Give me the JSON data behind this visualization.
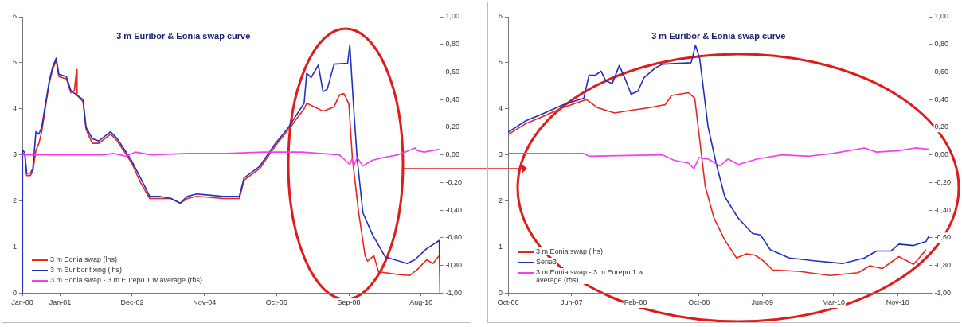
{
  "chart_data": [
    {
      "type": "line",
      "title": "3 m Euribor & Eonia swap curve",
      "legend": "bottom left",
      "xlim": [
        "2000-01-01",
        "2011-02-01"
      ],
      "xticks": [
        {
          "value": "2000-01-01",
          "label": "Jan-00"
        },
        {
          "value": "2001-01-01",
          "label": "Jan-01"
        },
        {
          "value": "2002-12-01",
          "label": "Dec-02"
        },
        {
          "value": "2004-11-01",
          "label": "Nov-04"
        },
        {
          "value": "2006-10-01",
          "label": "Oct-06"
        },
        {
          "value": "2008-09-01",
          "label": "Sep-08"
        },
        {
          "value": "2010-08-01",
          "label": "Aug-10"
        }
      ],
      "ylim": [
        0,
        6
      ],
      "yticks": [
        0,
        1,
        2,
        3,
        4,
        5,
        6
      ],
      "y2lim": [
        -1,
        1
      ],
      "y2ticks": [
        {
          "value": -1,
          "label": "-1,00"
        },
        {
          "value": -0.8,
          "label": "-0,80"
        },
        {
          "value": -0.6,
          "label": "-0,60"
        },
        {
          "value": -0.4,
          "label": "-0,40"
        },
        {
          "value": -0.2,
          "label": "-0,20"
        },
        {
          "value": 0,
          "label": "0,00"
        },
        {
          "value": 0.2,
          "label": "0,20"
        },
        {
          "value": 0.4,
          "label": "0,40"
        },
        {
          "value": 0.6,
          "label": "0,60"
        },
        {
          "value": 0.8,
          "label": "0,80"
        },
        {
          "value": 1,
          "label": "1,00"
        }
      ],
      "series": [
        {
          "name": "3 m Eonia swap (lhs)",
          "color": "#e8251f",
          "x": [
            "2000-01-03",
            "2000-01-25",
            "2000-02-12",
            "2000-03-20",
            "2000-04-12",
            "2000-05-12",
            "2000-06-10",
            "2000-07-07",
            "2000-08-20",
            "2000-09-18",
            "2000-10-20",
            "2000-11-25",
            "2000-12-20",
            "2001-03-03",
            "2001-04-15",
            "2001-05-20",
            "2001-06-10",
            "2001-06-15",
            "2001-08-12",
            "2001-09-10",
            "2001-11-10",
            "2002-01-12",
            "2002-05-06",
            "2002-07-10",
            "2002-10-06",
            "2002-12-01",
            "2003-02-20",
            "2003-05-20",
            "2003-08-25",
            "2003-12-12",
            "2004-03-10",
            "2004-05-20",
            "2004-08-18",
            "2005-04-28",
            "2005-10-05",
            "2005-11-20",
            "2006-04-20",
            "2006-09-20",
            "2007-01-25",
            "2007-06-25",
            "2007-07-20",
            "2007-12-25",
            "2008-04-10",
            "2008-06-01",
            "2008-07-15",
            "2008-09-01",
            "2008-10-05",
            "2008-12-05",
            "2009-02-05",
            "2009-03-01",
            "2009-05-01",
            "2009-06-15",
            "2009-12-20",
            "2010-04-15",
            "2010-07-01",
            "2010-09-25",
            "2010-11-25",
            "2011-01-25"
          ],
          "values": [
            3.05,
            3.0,
            2.55,
            2.55,
            2.65,
            3.1,
            3.25,
            3.5,
            4.15,
            4.55,
            4.85,
            5.05,
            4.7,
            4.65,
            4.35,
            4.4,
            4.85,
            4.3,
            4.15,
            3.55,
            3.25,
            3.25,
            3.45,
            3.3,
            3.0,
            2.8,
            2.4,
            2.05,
            2.05,
            2.05,
            1.95,
            2.05,
            2.1,
            2.05,
            2.05,
            2.45,
            2.7,
            3.2,
            3.55,
            4.0,
            4.12,
            3.95,
            4.04,
            4.3,
            4.33,
            4.1,
            2.92,
            1.74,
            0.81,
            0.69,
            0.81,
            0.46,
            0.4,
            0.38,
            0.52,
            0.72,
            0.64,
            0.81
          ]
        },
        {
          "name": "3 m Euribor fixing (lhs)",
          "color": "#1f2fbf",
          "x": [
            "2000-01-01",
            "2000-01-03",
            "2000-01-25",
            "2000-02-12",
            "2000-03-20",
            "2000-04-12",
            "2000-05-12",
            "2000-06-10",
            "2000-07-07",
            "2000-08-20",
            "2000-09-18",
            "2000-10-20",
            "2000-11-25",
            "2000-12-20",
            "2001-03-03",
            "2001-04-15",
            "2001-06-10",
            "2001-08-12",
            "2001-09-10",
            "2001-11-10",
            "2002-01-12",
            "2002-05-06",
            "2002-07-10",
            "2002-10-06",
            "2002-12-01",
            "2003-02-20",
            "2003-05-20",
            "2003-08-25",
            "2003-12-12",
            "2004-03-10",
            "2004-05-20",
            "2004-08-18",
            "2005-04-28",
            "2005-10-05",
            "2005-11-20",
            "2006-04-20",
            "2006-09-20",
            "2007-01-25",
            "2007-06-25",
            "2007-07-20",
            "2007-09-01",
            "2007-11-10",
            "2007-12-25",
            "2008-02-05",
            "2008-04-10",
            "2008-08-20",
            "2008-09-10",
            "2008-10-15",
            "2008-11-20",
            "2009-01-15",
            "2009-04-15",
            "2009-08-20",
            "2010-03-20",
            "2010-06-01",
            "2010-09-25",
            "2011-01-25",
            "2011-02-01"
          ],
          "values": [
            0,
            3.1,
            3.05,
            2.6,
            2.6,
            2.7,
            3.5,
            3.45,
            3.6,
            4.2,
            4.6,
            4.9,
            5.1,
            4.75,
            4.7,
            4.4,
            4.3,
            4.2,
            3.6,
            3.35,
            3.3,
            3.5,
            3.35,
            3.05,
            2.85,
            2.5,
            2.1,
            2.1,
            2.05,
            1.95,
            2.1,
            2.15,
            2.1,
            2.1,
            2.5,
            2.75,
            3.25,
            3.6,
            4.12,
            4.77,
            4.68,
            4.95,
            4.37,
            4.43,
            4.97,
            4.99,
            5.39,
            4.1,
            2.92,
            1.74,
            1.28,
            0.78,
            0.64,
            0.72,
            0.96,
            1.14,
            0
          ]
        },
        {
          "name": "3 m Eonia swap - 3 m Eurepo  1 w average (rhs)",
          "color": "#f23ef2",
          "axis": "y2",
          "x": [
            "2000-01-01",
            "2002-03-01",
            "2002-06-01",
            "2002-10-01",
            "2003-01-01",
            "2003-06-01",
            "2004-06-01",
            "2005-06-01",
            "2006-06-01",
            "2007-06-01",
            "2008-06-01",
            "2008-09-10",
            "2008-10-01",
            "2008-10-20",
            "2008-11-20",
            "2009-01-15",
            "2009-04-15",
            "2009-08-01",
            "2009-12-20",
            "2010-04-01",
            "2010-06-01",
            "2010-07-01",
            "2010-09-01",
            "2011-01-25"
          ],
          "values": [
            0,
            0,
            0.01,
            -0.01,
            0.02,
            0.0,
            0.01,
            0.01,
            0.02,
            0.02,
            0.0,
            -0.07,
            -0.03,
            -0.08,
            -0.02,
            -0.08,
            -0.04,
            -0.02,
            0.0,
            0.03,
            0.05,
            0.03,
            0.02,
            0.04
          ]
        }
      ]
    },
    {
      "type": "line",
      "title": "3 m Euribor & Eonia swap curve",
      "legend": "bottom left",
      "xlim": [
        "2006-10-01",
        "2011-03-01"
      ],
      "xticks": [
        {
          "value": "2006-10-01",
          "label": "Oct-06"
        },
        {
          "value": "2007-06-01",
          "label": "Jun-07"
        },
        {
          "value": "2008-02-01",
          "label": "Feb-08"
        },
        {
          "value": "2008-10-01",
          "label": "Oct-08"
        },
        {
          "value": "2009-06-01",
          "label": "Jun-09"
        },
        {
          "value": "2010-03-01",
          "label": "Mar-10"
        },
        {
          "value": "2010-11-01",
          "label": "Nov-10"
        }
      ],
      "ylim": [
        0,
        6
      ],
      "yticks": [
        0,
        1,
        2,
        3,
        4,
        5,
        6
      ],
      "y2lim": [
        -1,
        1
      ],
      "y2ticks": [
        {
          "value": -1,
          "label": "-1,00"
        },
        {
          "value": -0.8,
          "label": "-0,80"
        },
        {
          "value": -0.6,
          "label": "-0,60"
        },
        {
          "value": -0.4,
          "label": "-0,40"
        },
        {
          "value": -0.2,
          "label": "-0,20"
        },
        {
          "value": 0,
          "label": "0,00"
        },
        {
          "value": 0.2,
          "label": "0,20"
        },
        {
          "value": 0.4,
          "label": "0,40"
        },
        {
          "value": 0.6,
          "label": "0,60"
        },
        {
          "value": 0.8,
          "label": "0,80"
        },
        {
          "value": 1,
          "label": "1,00"
        }
      ],
      "series": [
        {
          "name": "3 m Eonia swap (lhs)",
          "color": "#e8251f",
          "x": [
            "2006-10-01",
            "2006-12-05",
            "2007-02-18",
            "2007-05-01",
            "2007-07-18",
            "2007-07-28",
            "2007-09-10",
            "2007-11-13",
            "2008-01-18",
            "2008-03-22",
            "2008-05-25",
            "2008-06-18",
            "2008-08-22",
            "2008-09-15",
            "2008-09-28",
            "2008-10-25",
            "2008-11-28",
            "2009-01-08",
            "2009-02-22",
            "2009-04-01",
            "2009-05-04",
            "2009-06-04",
            "2009-07-10",
            "2009-10-18",
            "2010-02-15",
            "2010-06-03",
            "2010-07-18",
            "2010-09-03",
            "2010-11-06",
            "2011-01-01",
            "2011-01-27",
            "2011-02-18"
          ],
          "values": [
            3.44,
            3.67,
            3.85,
            4.03,
            4.18,
            4.2,
            4.02,
            3.91,
            3.97,
            4.02,
            4.09,
            4.29,
            4.35,
            4.23,
            3.61,
            2.32,
            1.62,
            1.15,
            0.76,
            0.85,
            0.82,
            0.7,
            0.5,
            0.47,
            0.38,
            0.44,
            0.59,
            0.53,
            0.79,
            0.62,
            0.79,
            0.94
          ]
        },
        {
          "name": "Série3",
          "color": "#1f2fbf",
          "x": [
            "2006-10-01",
            "2006-12-05",
            "2007-02-18",
            "2007-05-01",
            "2007-07-18",
            "2007-08-07",
            "2007-09-01",
            "2007-09-22",
            "2007-10-10",
            "2007-11-04",
            "2007-12-01",
            "2007-12-22",
            "2008-01-15",
            "2008-02-10",
            "2008-03-04",
            "2008-04-15",
            "2008-05-15",
            "2008-09-01",
            "2008-09-18",
            "2008-10-04",
            "2008-11-05",
            "2008-12-07",
            "2009-01-08",
            "2009-03-01",
            "2009-04-25",
            "2009-05-25",
            "2009-07-01",
            "2009-09-12",
            "2009-12-15",
            "2010-04-04",
            "2010-06-27",
            "2010-08-12",
            "2010-10-06",
            "2010-11-06",
            "2011-01-01",
            "2011-02-18",
            "2011-03-01"
          ],
          "values": [
            3.49,
            3.73,
            3.91,
            4.09,
            4.23,
            4.73,
            4.73,
            4.82,
            4.61,
            4.55,
            4.94,
            4.67,
            4.32,
            4.38,
            4.67,
            4.88,
            4.97,
            5.0,
            5.38,
            5.09,
            3.61,
            2.79,
            2.09,
            1.62,
            1.29,
            1.26,
            0.94,
            0.76,
            0.7,
            0.64,
            0.76,
            0.91,
            0.91,
            1.06,
            1.03,
            1.12,
            1.24
          ]
        },
        {
          "name": "3 m Eonia swap - 3 m Eurepo  1 w average (rhs)",
          "color": "#f23ef2",
          "axis": "y2",
          "x": [
            "2006-10-01",
            "2007-07-18",
            "2007-08-07",
            "2008-05-15",
            "2008-06-28",
            "2008-08-22",
            "2008-09-12",
            "2008-10-01",
            "2008-10-25",
            "2008-11-05",
            "2008-12-20",
            "2009-01-20",
            "2009-03-01",
            "2009-05-13",
            "2009-08-15",
            "2009-11-25",
            "2010-02-25",
            "2010-06-27",
            "2010-08-12",
            "2010-11-06",
            "2011-01-08",
            "2011-03-01"
          ],
          "values": [
            0.01,
            0.01,
            -0.01,
            0.0,
            -0.04,
            -0.06,
            -0.1,
            -0.02,
            -0.03,
            -0.03,
            -0.08,
            -0.03,
            -0.07,
            -0.03,
            0.0,
            -0.01,
            0.01,
            0.05,
            0.02,
            0.03,
            0.05,
            0.04
          ]
        }
      ]
    }
  ]
}
